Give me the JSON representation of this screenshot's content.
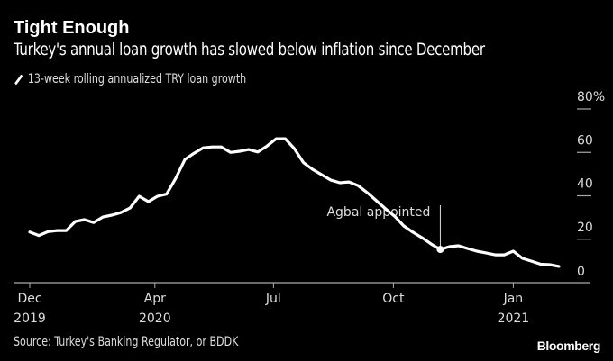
{
  "title": "Tight Enough",
  "subtitle": "Turkey's annual loan growth has slowed below inflation since December",
  "source": "Source: Turkey's Banking Regulator, or BDDK",
  "brand": "Bloomberg",
  "colors": {
    "background": "#000000",
    "line": "#ffffff",
    "axis": "#aaaaaa",
    "text": "#dddddd"
  },
  "chart_data": {
    "type": "line",
    "title": "Tight Enough",
    "subtitle": "Turkey's annual loan growth has slowed below inflation since December",
    "xlabel": "",
    "ylabel": "",
    "legend": {
      "placement": "top-left",
      "entries": [
        "13-week rolling annualized TRY loan growth"
      ]
    },
    "grid": false,
    "ylim": [
      0,
      80
    ],
    "yticks": [
      {
        "value": 0,
        "label": "0"
      },
      {
        "value": 20,
        "label": "20"
      },
      {
        "value": 40,
        "label": "40"
      },
      {
        "value": 60,
        "label": "60"
      },
      {
        "value": 80,
        "label": "80%"
      }
    ],
    "xticks": [
      {
        "date": "2019-12",
        "label": "Dec",
        "year": "2019"
      },
      {
        "date": "2020-04",
        "label": "Apr",
        "year": "2020"
      },
      {
        "date": "2020-07",
        "label": "Jul",
        "year": ""
      },
      {
        "date": "2020-10",
        "label": "Oct",
        "year": ""
      },
      {
        "date": "2021-01",
        "label": "Jan",
        "year": "2021"
      }
    ],
    "series": [
      {
        "name": "13-week rolling annualized TRY loan growth",
        "x": [
          "2019-12-27",
          "2020-01-03",
          "2020-01-10",
          "2020-01-17",
          "2020-01-24",
          "2020-01-31",
          "2020-02-07",
          "2020-02-14",
          "2020-02-21",
          "2020-02-28",
          "2020-03-06",
          "2020-03-13",
          "2020-03-20",
          "2020-03-27",
          "2020-04-03",
          "2020-04-10",
          "2020-04-17",
          "2020-04-24",
          "2020-05-01",
          "2020-05-08",
          "2020-05-15",
          "2020-05-22",
          "2020-05-29",
          "2020-06-05",
          "2020-06-12",
          "2020-06-19",
          "2020-06-26",
          "2020-07-03",
          "2020-07-10",
          "2020-07-17",
          "2020-07-24",
          "2020-07-31",
          "2020-08-07",
          "2020-08-14",
          "2020-08-21",
          "2020-08-28",
          "2020-09-04",
          "2020-09-11",
          "2020-09-18",
          "2020-09-25",
          "2020-10-02",
          "2020-10-09",
          "2020-10-16",
          "2020-10-23",
          "2020-10-30",
          "2020-11-06",
          "2020-11-13",
          "2020-11-20",
          "2020-11-27",
          "2020-12-04",
          "2020-12-11",
          "2020-12-18",
          "2020-12-25",
          "2021-01-01",
          "2021-01-08",
          "2021-01-15",
          "2021-01-22",
          "2021-01-29",
          "2021-02-05"
        ],
        "values": [
          23.3,
          21.7,
          23.5,
          24.0,
          24.0,
          28.2,
          29.0,
          27.7,
          30.2,
          31.1,
          32.3,
          34.4,
          39.8,
          37.3,
          39.8,
          40.8,
          48.0,
          56.7,
          59.6,
          62.1,
          62.5,
          62.5,
          60.0,
          60.5,
          61.3,
          60.2,
          62.9,
          66.3,
          66.3,
          61.7,
          55.3,
          52.2,
          49.7,
          47.2,
          46.0,
          46.4,
          44.7,
          41.4,
          37.7,
          34.0,
          30.6,
          26.1,
          23.2,
          20.7,
          17.8,
          15.3,
          16.6,
          17.0,
          15.7,
          14.5,
          13.7,
          12.8,
          12.8,
          14.5,
          11.2,
          9.9,
          8.5,
          8.3,
          7.5
        ]
      }
    ],
    "annotations": [
      {
        "text": "Agbal appointed",
        "date": "2020-11-06",
        "value": 15.3
      }
    ]
  }
}
